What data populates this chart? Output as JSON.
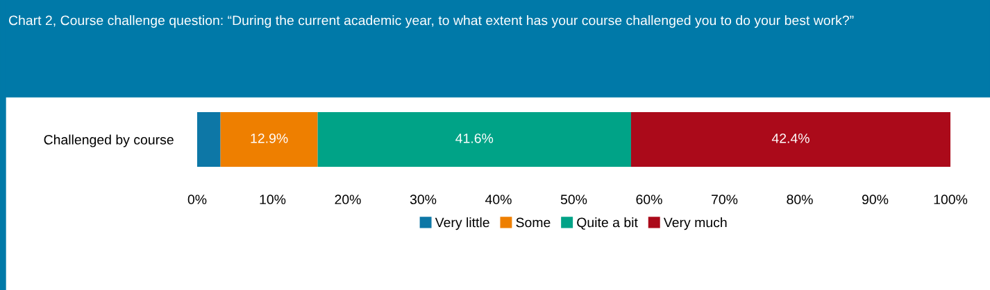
{
  "chart_data": {
    "type": "bar",
    "orientation": "horizontal",
    "stacked": true,
    "title": "Chart 2, Course challenge question: “During the current academic year, to what extent has your course challenged you to do your best work?”",
    "categories": [
      "Challenged by course"
    ],
    "series": [
      {
        "name": "Very little",
        "color": "#0d77a6",
        "values": [
          3.1
        ],
        "value_labels": [
          null
        ]
      },
      {
        "name": "Some",
        "color": "#ee7f00",
        "values": [
          12.9
        ],
        "value_labels": [
          "12.9%"
        ]
      },
      {
        "name": "Quite a bit",
        "color": "#00a387",
        "values": [
          41.6
        ],
        "value_labels": [
          "41.6%"
        ]
      },
      {
        "name": "Very much",
        "color": "#ab0a1a",
        "values": [
          42.4
        ],
        "value_labels": [
          "42.4%"
        ]
      }
    ],
    "xlim": [
      0,
      100
    ],
    "xticks": [
      {
        "value": 0,
        "label": "0%"
      },
      {
        "value": 10,
        "label": "10%"
      },
      {
        "value": 20,
        "label": "20%"
      },
      {
        "value": 30,
        "label": "30%"
      },
      {
        "value": 40,
        "label": "40%"
      },
      {
        "value": 50,
        "label": "50%"
      },
      {
        "value": 60,
        "label": "60%"
      },
      {
        "value": 70,
        "label": "70%"
      },
      {
        "value": 80,
        "label": "80%"
      },
      {
        "value": 90,
        "label": "90%"
      },
      {
        "value": 100,
        "label": "100%"
      }
    ],
    "legend": "bottom",
    "grid": false
  }
}
